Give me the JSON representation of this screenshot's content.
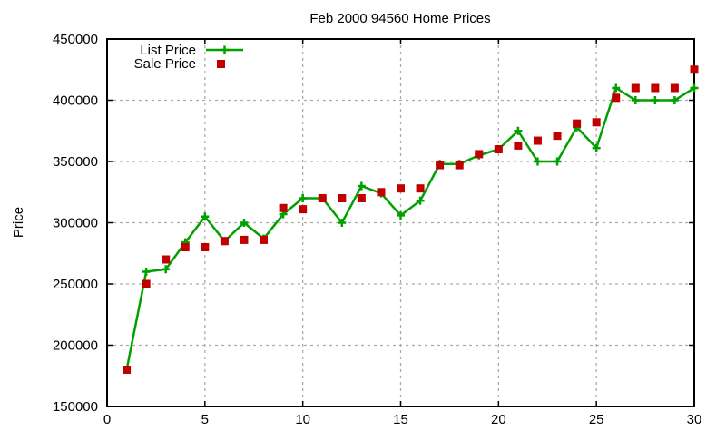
{
  "chart_data": {
    "type": "line",
    "title": "Feb 2000 94560 Home Prices",
    "xlabel": "",
    "ylabel": "Price",
    "xlim": [
      0,
      30
    ],
    "ylim": [
      150000,
      450000
    ],
    "xticks": [
      0,
      5,
      10,
      15,
      20,
      25,
      30
    ],
    "yticks": [
      150000,
      200000,
      250000,
      300000,
      350000,
      400000,
      450000
    ],
    "grid": true,
    "grid_color": "#aaaaaa",
    "border_color": "#000000",
    "legend_position": "top-left-inside",
    "x": [
      1,
      2,
      3,
      4,
      5,
      6,
      7,
      8,
      9,
      10,
      11,
      12,
      13,
      14,
      15,
      16,
      17,
      18,
      19,
      20,
      21,
      22,
      23,
      24,
      25,
      26,
      27,
      28,
      29,
      30
    ],
    "series": [
      {
        "name": "List Price",
        "color": "#00A000",
        "marker": "plus",
        "line": true,
        "values": [
          180000,
          260000,
          262000,
          284000,
          305000,
          285000,
          300000,
          287000,
          307000,
          320000,
          320000,
          300000,
          330000,
          324000,
          306000,
          318000,
          348000,
          348000,
          355000,
          360000,
          375000,
          350000,
          350000,
          378000,
          361000,
          410000,
          400000,
          400000,
          400000,
          410000
        ]
      },
      {
        "name": "Sale Price",
        "color": "#C00000",
        "marker": "square",
        "line": false,
        "values": [
          180000,
          250000,
          270000,
          280000,
          280000,
          285000,
          286000,
          286000,
          312000,
          311000,
          320000,
          320000,
          320000,
          325000,
          328000,
          328000,
          347000,
          347000,
          356000,
          360000,
          363000,
          367000,
          371000,
          381000,
          382000,
          402000,
          410000,
          410000,
          410000,
          425000
        ]
      }
    ]
  }
}
